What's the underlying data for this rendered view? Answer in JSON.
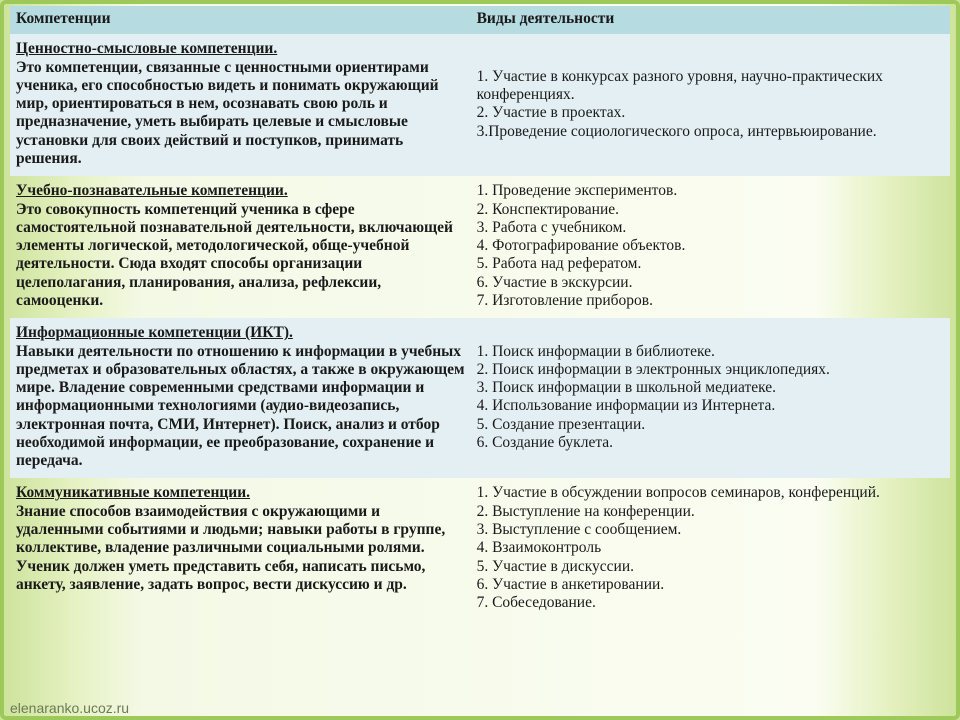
{
  "footer": "elenaranko.ucoz.ru",
  "table": {
    "background_colors": {
      "header": "#b6dbe0",
      "band": "#e3eff2",
      "plain": "transparent"
    },
    "font": {
      "family": "Times New Roman",
      "size_pt": 12,
      "color": "#1a1a1a"
    },
    "column_widths_pct": [
      49,
      51
    ],
    "head": {
      "c1": "Компетенции",
      "c2": "Виды деятельности"
    },
    "rows": [
      {
        "band": true,
        "title": "Ценностно-смысловые компетенции.",
        "body": "Это компетенции, связанные с ценностными ориентирами ученика, его способностью видеть и понимать окружающий мир, ориентироваться в нем, осознавать свою роль и предназначение, уметь выбирать целевые и смысловые установки для своих действий и поступков, принимать решения.",
        "acts": [
          "1. Участие в конкурсах разного уровня, научно-практических конференциях.",
          "2. Участие в проектах.",
          "3.Проведение социологического опроса, интервьюирование."
        ]
      },
      {
        "band": false,
        "title": "Учебно-познавательные компетенции.",
        "body": "Это совокупность компетенций ученика в сфере самостоятельной познавательной деятельности, включающей элементы логической, методологической, обще-учебной деятельности. Сюда входят способы организации целеполагания, планирования, анализа, рефлексии, самооценки.",
        "acts": [
          "1. Проведение экспериментов.",
          "2. Конспектирование.",
          "3. Работа с учебником.",
          "4. Фотографирование объектов.",
          "5. Работа над рефератом.",
          "6. Участие в экскурсии.",
          "7. Изготовление приборов."
        ]
      },
      {
        "band": true,
        "title": "Информационные компетенции (ИКТ).",
        "body": "Навыки деятельности по отношению к информации в учебных предметах и образовательных областях, а также в окружающем мире. Владение современными средствами информации и информационными технологиями (аудио-видеозапись, электронная почта, СМИ, Интернет). Поиск, анализ и отбор необходимой информации, ее преобразование, сохранение и передача.",
        "acts": [
          "1. Поиск информации в библиотеке.",
          "2. Поиск информации в электронных энциклопедиях.",
          "3. Поиск информации в школьной медиатеке.",
          "4. Использование информации из Интернета.",
          "5. Создание презентации.",
          "6. Создание буклета."
        ]
      },
      {
        "band": false,
        "title": "Коммуникативные компетенции.",
        "body": "Знание способов взаимодействия с окружающими и удаленными событиями и людьми; навыки работы в группе, коллективе, владение различными социальными ролями. Ученик должен уметь представить себя, написать письмо, анкету, заявление, задать вопрос, вести дискуссию и др.",
        "acts": [
          "1. Участие в обсуждении вопросов семинаров, конференций.",
          "2. Выступление на конференции.",
          "3. Выступление с сообщением.",
          "4. Взаимоконтроль",
          "5. Участие в дискуссии.",
          "6. Участие в анкетировании.",
          "7. Собеседование."
        ]
      }
    ]
  }
}
